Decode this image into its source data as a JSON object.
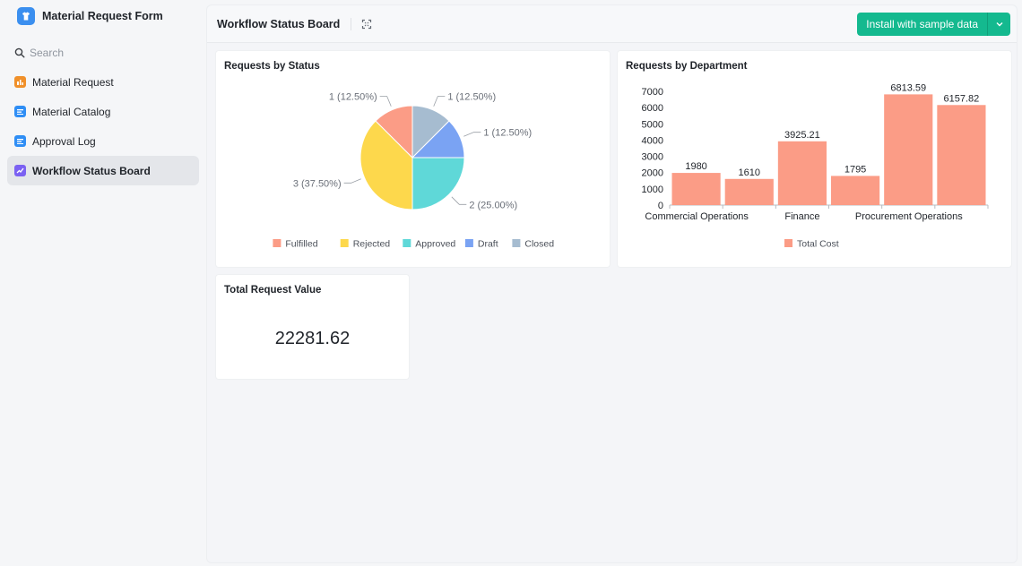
{
  "app": {
    "title": "Material Request Form"
  },
  "search": {
    "placeholder": "Search"
  },
  "sidebar": {
    "items": [
      {
        "label": "Material Request",
        "icon": "form-icon",
        "color": "#f0902a"
      },
      {
        "label": "Material Catalog",
        "icon": "table-icon",
        "color": "#2f8ef5"
      },
      {
        "label": "Approval Log",
        "icon": "table-icon",
        "color": "#2f8ef5"
      },
      {
        "label": "Workflow Status Board",
        "icon": "dashboard-icon",
        "color": "#7b61f2",
        "active": true
      }
    ]
  },
  "header": {
    "title": "Workflow Status Board",
    "install_label": "Install with sample data"
  },
  "cards": {
    "status_title": "Requests by Status",
    "department_title": "Requests by Department",
    "total_title": "Total Request Value",
    "total_value": "22281.62"
  },
  "chart_data": [
    {
      "type": "pie",
      "title": "Requests by Status",
      "slices": [
        {
          "name": "Fulfilled",
          "value": 1,
          "label": "1 (12.50%)",
          "color": "#fb9c86"
        },
        {
          "name": "Rejected",
          "value": 3,
          "label": "3 (37.50%)",
          "color": "#fdd84c"
        },
        {
          "name": "Approved",
          "value": 2,
          "label": "2 (25.00%)",
          "color": "#5fd8d8"
        },
        {
          "name": "Draft",
          "value": 1,
          "label": "1 (12.50%)",
          "color": "#7aa3f3"
        },
        {
          "name": "Closed",
          "value": 1,
          "label": "1 (12.50%)",
          "color": "#a6bcd0"
        }
      ],
      "legend": [
        "Fulfilled",
        "Rejected",
        "Approved",
        "Draft",
        "Closed"
      ],
      "legend_position": "bottom"
    },
    {
      "type": "bar",
      "title": "Requests by Department",
      "categories": [
        "Commercial Operations",
        "",
        "Finance",
        "",
        "Procurement Operations",
        ""
      ],
      "series": [
        {
          "name": "Total Cost",
          "color": "#fb9c86",
          "values": [
            1980,
            1610,
            3925.21,
            1795,
            6813.59,
            6157.82
          ]
        }
      ],
      "data_labels": [
        "1980",
        "1610",
        "3925.21",
        "1795",
        "6813.59",
        "6157.82"
      ],
      "yticks": [
        0,
        1000,
        2000,
        3000,
        4000,
        5000,
        6000,
        7000
      ],
      "ylim": [
        0,
        7000
      ],
      "legend_position": "bottom"
    }
  ]
}
